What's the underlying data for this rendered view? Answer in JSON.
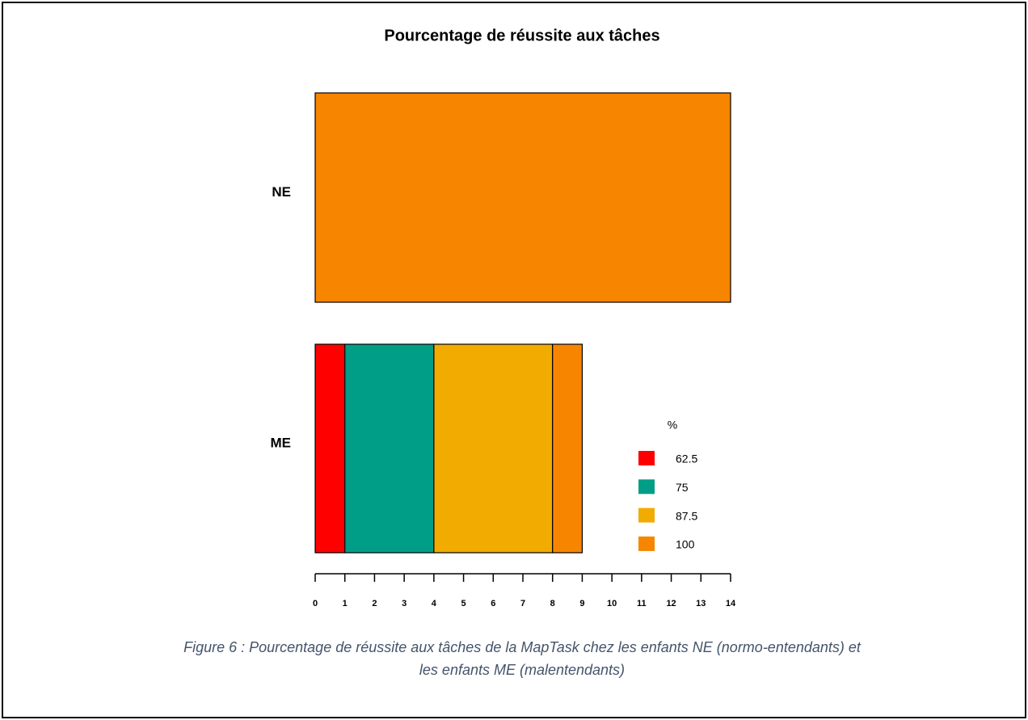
{
  "chart_data": {
    "type": "stacked-bar-horizontal",
    "title": "Pourcentage de réussite aux tâches",
    "categories": [
      "NE",
      "ME"
    ],
    "series": [
      {
        "name": "62.5",
        "color": "#ff0000",
        "values": [
          0,
          1
        ]
      },
      {
        "name": "75",
        "color": "#009e86",
        "values": [
          0,
          3
        ]
      },
      {
        "name": "87.5",
        "color": "#f2ab00",
        "values": [
          0,
          4
        ]
      },
      {
        "name": "100",
        "color": "#f78500",
        "values": [
          14,
          1
        ]
      }
    ],
    "xlim": [
      0,
      14
    ],
    "xticks": [
      0,
      1,
      2,
      3,
      4,
      5,
      6,
      7,
      8,
      9,
      10,
      11,
      12,
      13,
      14
    ],
    "legend_title": "%",
    "legend_position": "right",
    "caption": [
      "Figure 6 : Pourcentage de réussite aux tâches de la MapTask chez les enfants NE (normo-entendants) et",
      "les enfants ME (malentendants)"
    ]
  }
}
